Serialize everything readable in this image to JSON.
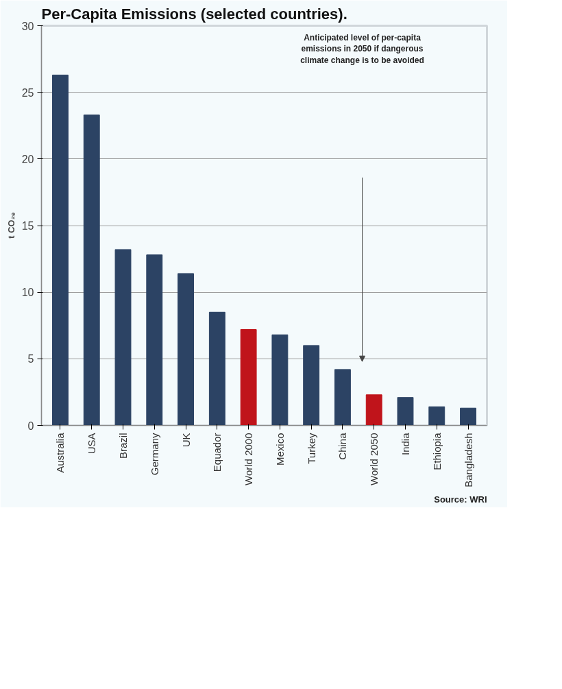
{
  "chart_data": {
    "type": "bar",
    "title": "Per-Capita Emissions (selected countries).",
    "ylabel": "t CO₂ₑ",
    "categories": [
      "Australia",
      "USA",
      "Brazil",
      "Germany",
      "UK",
      "Equador",
      "World 2000",
      "Mexico",
      "Turkey",
      "China",
      "World 2050",
      "India",
      "Ethiopia",
      "Bangladesh"
    ],
    "values": [
      26.3,
      23.3,
      13.2,
      12.8,
      11.4,
      8.5,
      7.2,
      6.8,
      6.0,
      4.2,
      2.3,
      2.1,
      1.4,
      1.3
    ],
    "colors": [
      "#2c4364",
      "#2c4364",
      "#2c4364",
      "#2c4364",
      "#2c4364",
      "#2c4364",
      "#c0141b",
      "#2c4364",
      "#2c4364",
      "#2c4364",
      "#c0141b",
      "#2c4364",
      "#2c4364",
      "#2c4364"
    ],
    "ylim": [
      0,
      30
    ],
    "yticks": [
      0,
      5,
      10,
      15,
      20,
      25,
      30
    ],
    "grid": "y",
    "annotations": [
      "Anticipated level of per-capita\nemissions in 2050 if dangerous\nclimate change is to be avoided",
      "Source: WRI"
    ]
  }
}
